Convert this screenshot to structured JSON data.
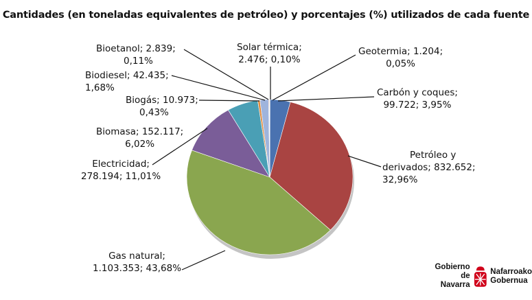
{
  "chart_data": {
    "type": "pie",
    "title": "Cantidades (en toneladas equivalentes de petróleo) y porcentajes (%) utilizados de cada fuente",
    "slices": [
      {
        "name": "Geotermia",
        "value": 1204,
        "percent": 0.05,
        "label1": "Geotermia; 1.204;",
        "label2": "0,05%",
        "color": "#7f99c9"
      },
      {
        "name": "Carbón y coques",
        "value": 99722,
        "percent": 3.95,
        "label1": "Carbón y coques;",
        "label2": "99.722; 3,95%",
        "color": "#4a72b0"
      },
      {
        "name": "Petróleo y derivados",
        "value": 832652,
        "percent": 32.96,
        "label1": "Petróleo y",
        "label2": "derivados; 832.652;",
        "label3": "32,96%",
        "color": "#a94442"
      },
      {
        "name": "Gas natural",
        "value": 1103353,
        "percent": 43.68,
        "label1": "Gas natural;",
        "label2": "1.103.353; 43,68%",
        "color": "#8aa64f"
      },
      {
        "name": "Electricidad",
        "value": 278194,
        "percent": 11.01,
        "label1": "Electricidad;",
        "label2": "278.194; 11,01%",
        "color": "#7a5d98"
      },
      {
        "name": "Biomasa",
        "value": 152117,
        "percent": 6.02,
        "label1": "Biomasa; 152.117;",
        "label2": "6,02%",
        "color": "#4a9fb5"
      },
      {
        "name": "Biogás",
        "value": 10973,
        "percent": 0.43,
        "label1": "Biogás; 10.973;",
        "label2": "0,43%",
        "color": "#e08a3c"
      },
      {
        "name": "Biodiesel",
        "value": 42435,
        "percent": 1.68,
        "label1": "Biodiesel; 42.435;",
        "label2": "1,68%",
        "color": "#9fb4dc"
      },
      {
        "name": "Bioetanol",
        "value": 2839,
        "percent": 0.11,
        "label1": "Bioetanol; 2.839;",
        "label2": "0,11%",
        "color": "#d07c7a"
      },
      {
        "name": "Solar térmica",
        "value": 2476,
        "percent": 0.1,
        "label1": "Solar térmica;",
        "label2": "2.476; 0,10%",
        "color": "#b7cc8a"
      }
    ]
  },
  "logo": {
    "line1_left": "Gobierno",
    "line2_left": "de Navarra",
    "line1_right": "Nafarroako",
    "line2_right": "Gobernua",
    "color": "#d0021b"
  }
}
